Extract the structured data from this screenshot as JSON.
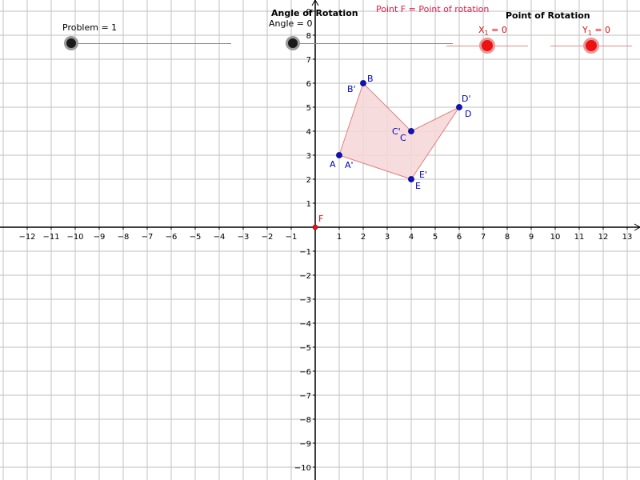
{
  "graph": {
    "x_range": [
      -12,
      13
    ],
    "y_range": [
      -10,
      9
    ],
    "x_ticks": [
      -12,
      -11,
      -10,
      -9,
      -8,
      -7,
      -6,
      -5,
      -4,
      -3,
      -2,
      -1,
      1,
      2,
      3,
      4,
      5,
      6,
      7,
      8,
      9,
      10,
      11,
      12,
      13
    ],
    "y_ticks": [
      -10,
      -9,
      -8,
      -7,
      -6,
      -5,
      -4,
      -3,
      -2,
      -1,
      1,
      2,
      3,
      4,
      5,
      6,
      7,
      8,
      9
    ],
    "colors": {
      "grid": "#c0c0c0",
      "axis": "#000000",
      "point": "#1010c8",
      "label": "#0000bb",
      "polygon_fill": "#f4d6d6",
      "polygon_stroke": "#e08080",
      "rotation_point": "#ee1111"
    },
    "polygon": [
      {
        "name": "A",
        "x": 1,
        "y": 3
      },
      {
        "name": "B",
        "x": 2,
        "y": 6
      },
      {
        "name": "C",
        "x": 4,
        "y": 4
      },
      {
        "name": "D",
        "x": 6,
        "y": 5
      },
      {
        "name": "E",
        "x": 4,
        "y": 2
      }
    ],
    "image_labels": [
      "A'",
      "B'",
      "C'",
      "D'",
      "E'"
    ],
    "rotation_point": {
      "name": "F",
      "x": 0,
      "y": 0
    }
  },
  "controls": {
    "problem_label": "Problem = 1",
    "angle_title": "Angle of Rotation",
    "angle_label": "Angle = 0",
    "note": "Point F = Point of rotation",
    "por_title": "Point of Rotation",
    "x1_main": "X",
    "x1_sub": "1",
    "x1_value": " = 0",
    "y1_main": "Y",
    "y1_sub": "1",
    "y1_value": " = 0"
  }
}
